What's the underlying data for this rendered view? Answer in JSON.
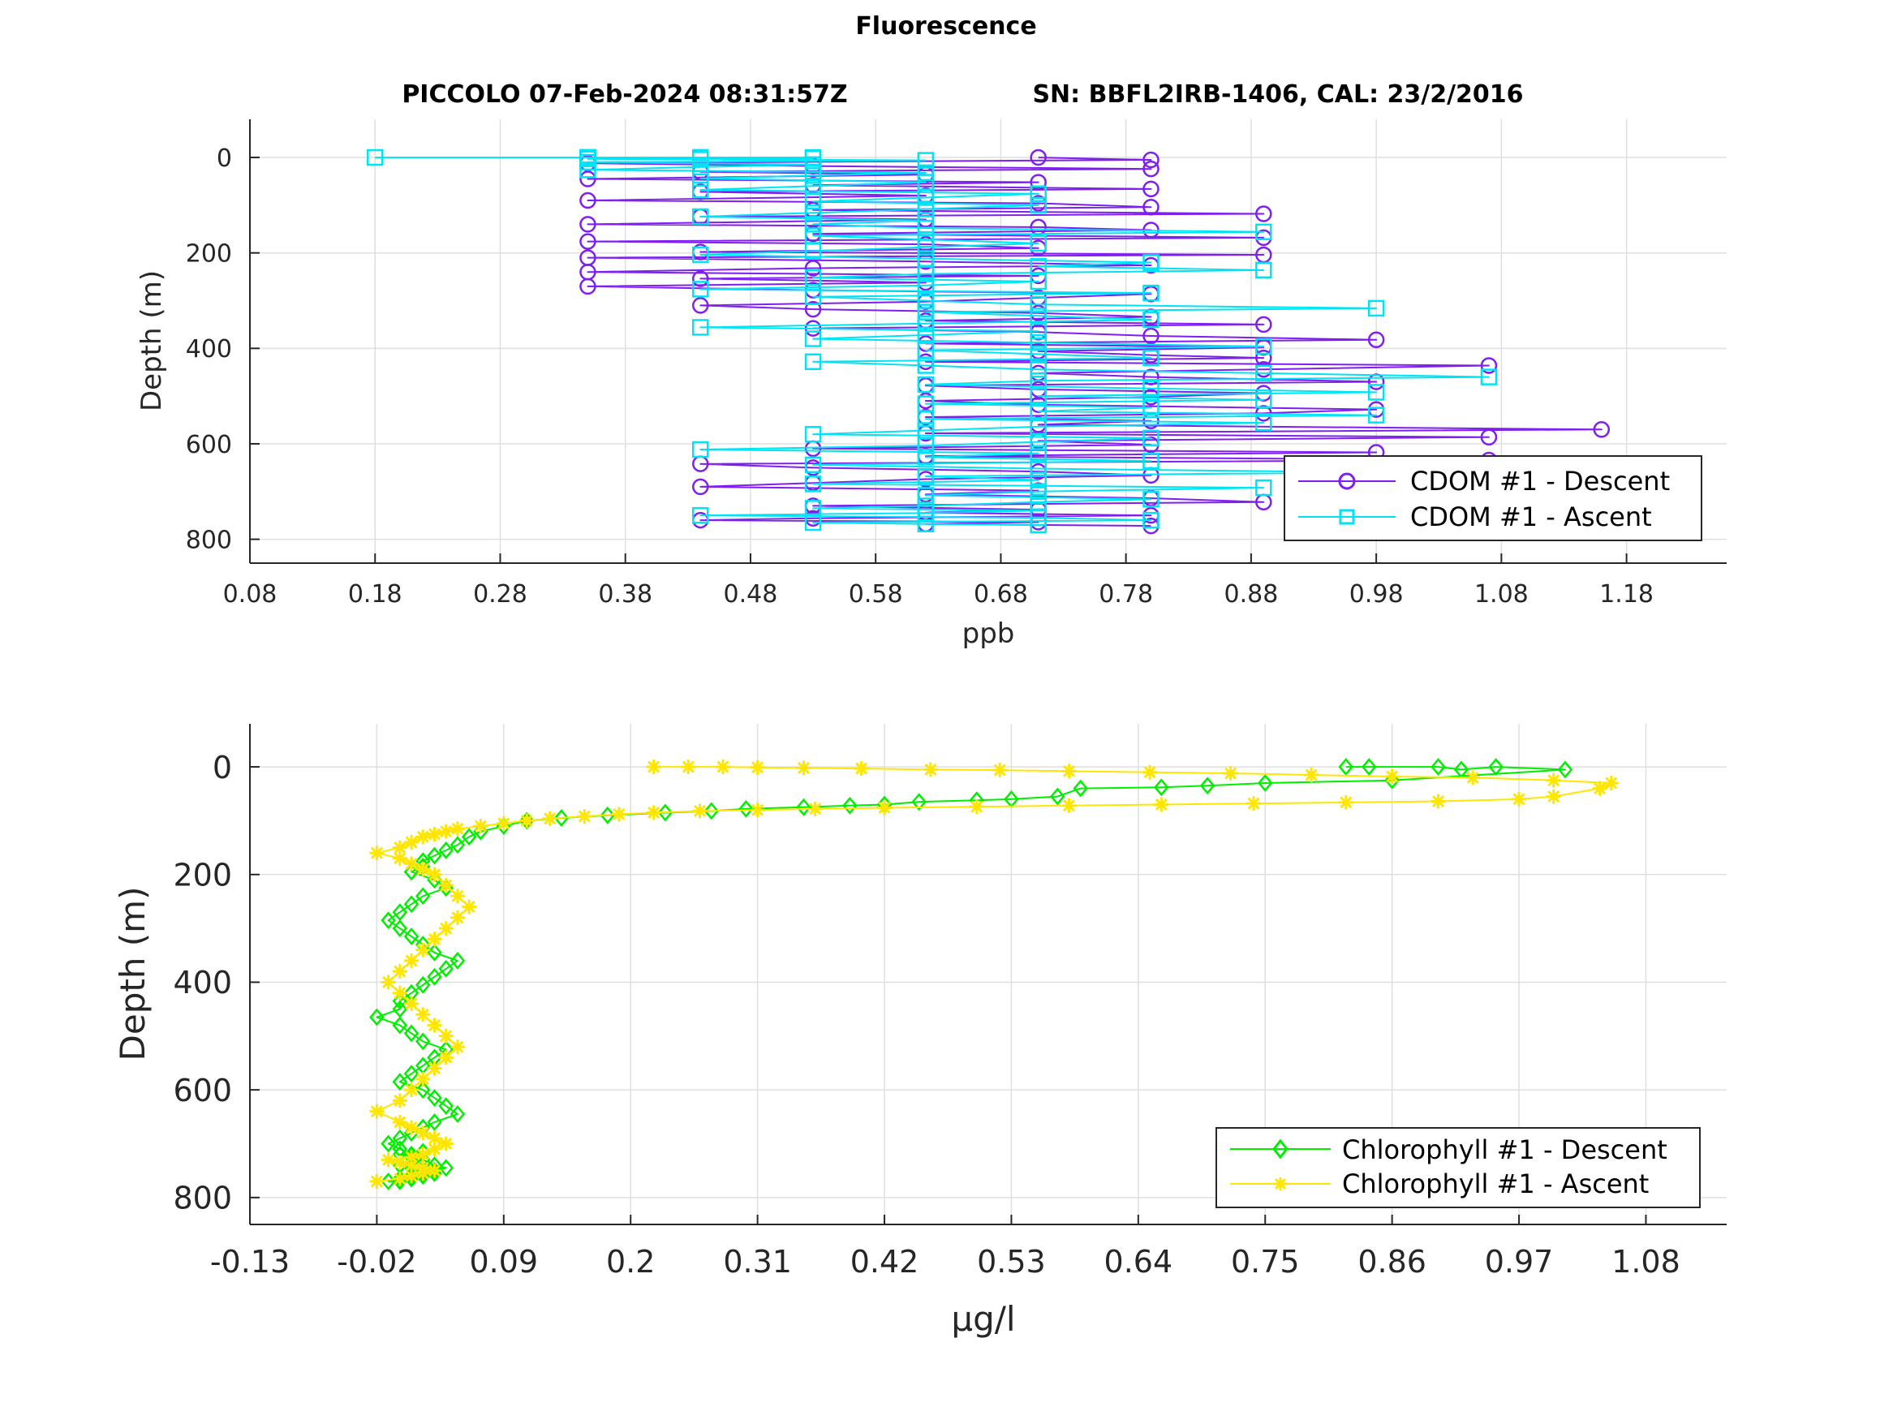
{
  "figure": {
    "suptitle": "Fluorescence",
    "subtitle_left": "PICCOLO 07-Feb-2024 08:31:57Z",
    "subtitle_right": "SN: BBFL2IRB-1406, CAL: 23/2/2016"
  },
  "chart_data": [
    {
      "type": "line",
      "markers": true,
      "xlabel": "ppb",
      "ylabel": "Depth (m)",
      "xlim": [
        0.08,
        1.26
      ],
      "ylim": [
        -80,
        850
      ],
      "y_reversed": true,
      "grid": true,
      "legend_placement": "bottom-right",
      "x_ticks": [
        0.08,
        0.18,
        0.28,
        0.38,
        0.48,
        0.58,
        0.68,
        0.78,
        0.88,
        0.98,
        1.08,
        1.18
      ],
      "x_tick_labels": [
        "0.08",
        "0.18",
        "0.28",
        "0.38",
        "0.48",
        "0.58",
        "0.68",
        "0.78",
        "0.88",
        "0.98",
        "1.08",
        "1.18"
      ],
      "y_ticks": [
        0,
        200,
        400,
        600,
        800
      ],
      "y_tick_labels": [
        "0",
        "200",
        "400",
        "600",
        "800"
      ],
      "series": [
        {
          "name": "CDOM #1 - Descent",
          "color": "#7f1fef",
          "marker": "circle",
          "x": [
            0.71,
            0.8,
            0.35,
            0.53,
            0.8,
            0.44,
            0.62,
            0.35,
            0.71,
            0.53,
            0.8,
            0.44,
            0.62,
            0.35,
            0.71,
            0.8,
            0.53,
            0.89,
            0.44,
            0.62,
            0.35,
            0.71,
            0.8,
            0.53,
            0.89,
            0.35,
            0.62,
            0.71,
            0.44,
            0.89,
            0.35,
            0.62,
            0.8,
            0.53,
            0.35,
            0.71,
            0.44,
            0.62,
            0.35,
            0.53,
            0.8,
            0.71,
            0.62,
            0.44,
            0.53,
            0.71,
            0.8,
            0.62,
            0.89,
            0.53,
            0.71,
            0.8,
            0.98,
            0.62,
            0.89,
            0.71,
            0.8,
            0.89,
            0.62,
            1.07,
            0.89,
            0.71,
            0.8,
            0.98,
            0.62,
            0.71,
            0.89,
            0.8,
            0.62,
            0.71,
            0.98,
            0.89,
            0.62,
            0.8,
            0.71,
            1.16,
            0.62,
            1.07,
            0.71,
            0.8,
            0.53,
            0.98,
            0.62,
            1.07,
            0.44,
            0.53,
            0.71,
            0.8,
            0.62,
            0.53,
            0.44,
            0.71,
            0.62,
            0.8,
            0.89,
            0.53,
            0.71,
            0.62,
            0.8,
            0.53,
            0.44,
            0.71,
            0.62,
            0.8
          ],
          "y": [
            0,
            5,
            12,
            18,
            24,
            30,
            36,
            45,
            52,
            58,
            66,
            72,
            80,
            90,
            96,
            104,
            110,
            118,
            124,
            130,
            140,
            146,
            152,
            160,
            168,
            176,
            182,
            190,
            198,
            204,
            210,
            218,
            226,
            232,
            240,
            248,
            254,
            262,
            270,
            278,
            286,
            294,
            302,
            310,
            318,
            326,
            334,
            342,
            350,
            358,
            366,
            374,
            382,
            390,
            398,
            406,
            414,
            420,
            428,
            436,
            444,
            452,
            460,
            470,
            478,
            486,
            494,
            502,
            510,
            518,
            528,
            536,
            544,
            552,
            560,
            570,
            578,
            586,
            594,
            602,
            610,
            618,
            626,
            634,
            642,
            650,
            658,
            666,
            674,
            682,
            690,
            698,
            706,
            714,
            722,
            730,
            738,
            744,
            750,
            756,
            760,
            764,
            768,
            772
          ]
        },
        {
          "name": "CDOM #1 - Ascent",
          "color": "#00e3f5",
          "marker": "square",
          "x": [
            0.71,
            0.62,
            0.53,
            0.8,
            0.71,
            0.44,
            0.62,
            0.71,
            0.53,
            0.62,
            0.71,
            0.8,
            0.62,
            0.71,
            0.89,
            0.53,
            0.71,
            0.62,
            0.98,
            0.71,
            0.53,
            0.8,
            0.62,
            0.71,
            0.44,
            0.62,
            0.71,
            0.8,
            0.53,
            0.62,
            0.71,
            0.89,
            0.62,
            0.98,
            0.71,
            0.8,
            0.62,
            0.89,
            0.71,
            0.98,
            0.8,
            0.62,
            0.71,
            1.07,
            0.89,
            0.71,
            0.62,
            0.53,
            0.8,
            0.71,
            0.62,
            0.89,
            0.71,
            0.53,
            0.62,
            0.71,
            0.44,
            0.62,
            0.8,
            0.71,
            0.62,
            0.98,
            0.71,
            0.62,
            0.53,
            0.8,
            0.44,
            0.62,
            0.71,
            0.53,
            0.62,
            0.89,
            0.71,
            0.8,
            0.62,
            0.44,
            0.53,
            0.62,
            0.71,
            0.62,
            0.53,
            0.89,
            0.62,
            0.53,
            0.62,
            0.44,
            0.53,
            0.62,
            0.71,
            0.53,
            0.62,
            0.71,
            0.44,
            0.53,
            0.62,
            0.44,
            0.53,
            0.62,
            0.35,
            0.44,
            0.53,
            0.35,
            0.62,
            0.44,
            0.35,
            0.53,
            0.44,
            0.35,
            0.53,
            0.44,
            0.35,
            0.44,
            0.35,
            0.53,
            0.35,
            0.18
          ],
          "y": [
            770,
            768,
            765,
            760,
            755,
            750,
            745,
            740,
            735,
            730,
            722,
            716,
            708,
            700,
            692,
            684,
            676,
            668,
            660,
            652,
            644,
            636,
            628,
            620,
            612,
            604,
            596,
            588,
            580,
            572,
            564,
            556,
            548,
            540,
            532,
            524,
            516,
            508,
            500,
            492,
            484,
            476,
            468,
            460,
            452,
            444,
            436,
            428,
            420,
            412,
            404,
            396,
            388,
            380,
            372,
            364,
            356,
            348,
            340,
            332,
            324,
            316,
            308,
            300,
            292,
            284,
            276,
            268,
            260,
            252,
            244,
            236,
            228,
            220,
            212,
            204,
            196,
            188,
            180,
            172,
            164,
            156,
            148,
            140,
            132,
            124,
            116,
            108,
            100,
            92,
            84,
            76,
            68,
            60,
            52,
            44,
            38,
            32,
            26,
            20,
            15,
            10,
            6,
            4,
            3,
            2,
            1,
            1,
            1,
            0,
            0,
            0,
            0,
            0,
            0,
            0
          ]
        }
      ]
    },
    {
      "type": "line",
      "markers": true,
      "xlabel": "μg/l",
      "ylabel": "Depth (m)",
      "xlim": [
        -0.13,
        1.15
      ],
      "ylim": [
        -80,
        850
      ],
      "y_reversed": true,
      "grid": true,
      "legend_placement": "bottom-right",
      "x_ticks": [
        -0.13,
        -0.02,
        0.09,
        0.2,
        0.31,
        0.42,
        0.53,
        0.64,
        0.75,
        0.86,
        0.97,
        1.08
      ],
      "x_tick_labels": [
        "-0.13",
        "-0.02",
        "0.09",
        "0.2",
        "0.31",
        "0.42",
        "0.53",
        "0.64",
        "0.75",
        "0.86",
        "0.97",
        "1.08"
      ],
      "y_ticks": [
        0,
        200,
        400,
        600,
        800
      ],
      "y_tick_labels": [
        "0",
        "200",
        "400",
        "600",
        "800"
      ],
      "series": [
        {
          "name": "Chlorophyll #1 - Descent",
          "color": "#00ee00",
          "marker": "diamond",
          "x": [
            0.82,
            0.84,
            0.9,
            0.92,
            0.95,
            1.01,
            0.86,
            0.75,
            0.7,
            0.66,
            0.59,
            0.57,
            0.53,
            0.5,
            0.45,
            0.42,
            0.39,
            0.35,
            0.3,
            0.27,
            0.23,
            0.18,
            0.14,
            0.11,
            0.09,
            0.07,
            0.06,
            0.05,
            0.04,
            0.03,
            0.02,
            0.02,
            0.01,
            0.03,
            0.04,
            0.02,
            0.01,
            0.0,
            -0.01,
            0.0,
            0.01,
            0.02,
            0.03,
            0.05,
            0.04,
            0.03,
            0.02,
            0.01,
            0.0,
            0.0,
            -0.02,
            0.0,
            0.01,
            0.02,
            0.04,
            0.03,
            0.02,
            0.01,
            0.0,
            0.02,
            0.03,
            0.04,
            0.05,
            0.03,
            0.02,
            0.01,
            0.0,
            -0.01,
            0.0,
            0.01,
            0.02,
            0.03,
            0.04,
            0.03,
            0.02,
            0.01,
            0.0,
            -0.01,
            0.0,
            0.01,
            0.02,
            0.03,
            0.02,
            0.01,
            0.0,
            0.01,
            0.02,
            0.01,
            0.0,
            0.02
          ],
          "y": [
            0,
            0,
            0,
            5,
            0,
            5,
            25,
            30,
            35,
            38,
            40,
            55,
            60,
            62,
            65,
            70,
            72,
            75,
            78,
            82,
            85,
            90,
            95,
            100,
            110,
            120,
            130,
            145,
            155,
            165,
            175,
            185,
            195,
            210,
            225,
            240,
            255,
            270,
            285,
            300,
            315,
            330,
            345,
            360,
            375,
            390,
            405,
            420,
            435,
            450,
            465,
            480,
            495,
            510,
            525,
            540,
            555,
            570,
            585,
            600,
            615,
            630,
            645,
            660,
            670,
            680,
            690,
            700,
            710,
            720,
            730,
            740,
            745,
            750,
            755,
            760,
            765,
            770,
            770,
            765,
            760,
            755,
            750,
            745,
            740,
            735,
            730,
            725,
            720,
            715
          ]
        },
        {
          "name": "Chlorophyll #1 - Ascent",
          "color": "#ffe600",
          "marker": "asterisk",
          "x": [
            -0.02,
            0.0,
            0.01,
            0.02,
            0.03,
            0.02,
            0.01,
            0.0,
            -0.01,
            0.01,
            0.02,
            0.03,
            0.04,
            0.03,
            0.02,
            0.01,
            0.0,
            -0.02,
            0.0,
            0.01,
            0.02,
            0.03,
            0.04,
            0.05,
            0.04,
            0.03,
            0.02,
            0.01,
            0.0,
            -0.01,
            0.0,
            0.01,
            0.02,
            0.03,
            0.04,
            0.05,
            0.06,
            0.05,
            0.04,
            0.03,
            0.02,
            0.01,
            0.0,
            -0.02,
            0.0,
            0.01,
            0.02,
            0.03,
            0.04,
            0.05,
            0.07,
            0.09,
            0.11,
            0.13,
            0.16,
            0.19,
            0.22,
            0.26,
            0.31,
            0.36,
            0.42,
            0.5,
            0.58,
            0.66,
            0.74,
            0.82,
            0.9,
            0.97,
            1.0,
            1.04,
            1.05,
            1.0,
            0.93,
            0.86,
            0.79,
            0.72,
            0.65,
            0.58,
            0.52,
            0.46,
            0.4,
            0.35,
            0.31,
            0.28,
            0.25,
            0.22
          ],
          "y": [
            770,
            765,
            760,
            755,
            750,
            745,
            740,
            735,
            730,
            725,
            720,
            710,
            700,
            690,
            680,
            670,
            660,
            640,
            620,
            600,
            580,
            560,
            540,
            520,
            500,
            480,
            460,
            440,
            420,
            400,
            380,
            360,
            340,
            320,
            300,
            280,
            260,
            240,
            220,
            200,
            190,
            180,
            170,
            160,
            150,
            140,
            130,
            125,
            120,
            115,
            110,
            105,
            100,
            96,
            92,
            88,
            85,
            82,
            80,
            78,
            76,
            74,
            72,
            70,
            68,
            66,
            64,
            60,
            55,
            40,
            30,
            25,
            20,
            18,
            15,
            12,
            10,
            8,
            6,
            5,
            3,
            2,
            1,
            0,
            0,
            0
          ]
        }
      ]
    }
  ]
}
